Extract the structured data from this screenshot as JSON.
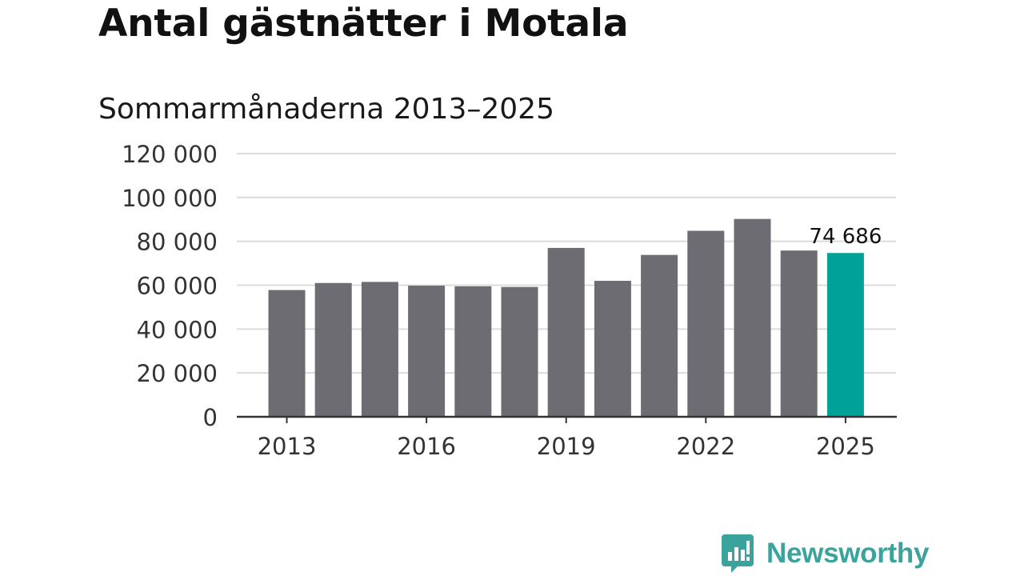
{
  "title": "Antal gästnätter i Motala",
  "subtitle": "Sommarmånaderna 2013–2025",
  "brand": {
    "name": "Newsworthy",
    "icon": "newsworthy-logo-icon",
    "color": "#3aa39c"
  },
  "chart_data": {
    "type": "bar",
    "title": "Antal gästnätter i Motala",
    "subtitle": "Sommarmånaderna 2013–2025",
    "xlabel": "",
    "ylabel": "",
    "categories": [
      "2013",
      "2014",
      "2015",
      "2016",
      "2017",
      "2018",
      "2019",
      "2020",
      "2021",
      "2022",
      "2023",
      "2024",
      "2025"
    ],
    "values": [
      57800,
      61000,
      61500,
      59800,
      59500,
      59200,
      77000,
      62000,
      73800,
      84800,
      90200,
      75800,
      74686
    ],
    "ylim": [
      0,
      120000
    ],
    "yticks": [
      0,
      20000,
      40000,
      60000,
      80000,
      100000,
      120000
    ],
    "ytick_labels": [
      "0",
      "20 000",
      "40 000",
      "60 000",
      "80 000",
      "100 000",
      "120 000"
    ],
    "xtick_labels": [
      "2013",
      "2016",
      "2019",
      "2022",
      "2025"
    ],
    "annotation": {
      "category": "2025",
      "label": "74 686"
    },
    "colors": {
      "bar": "#6d6c72",
      "highlight": "#00a298",
      "grid": "#dcdcdc",
      "axis": "#333333"
    },
    "grid": true,
    "legend": "none"
  }
}
